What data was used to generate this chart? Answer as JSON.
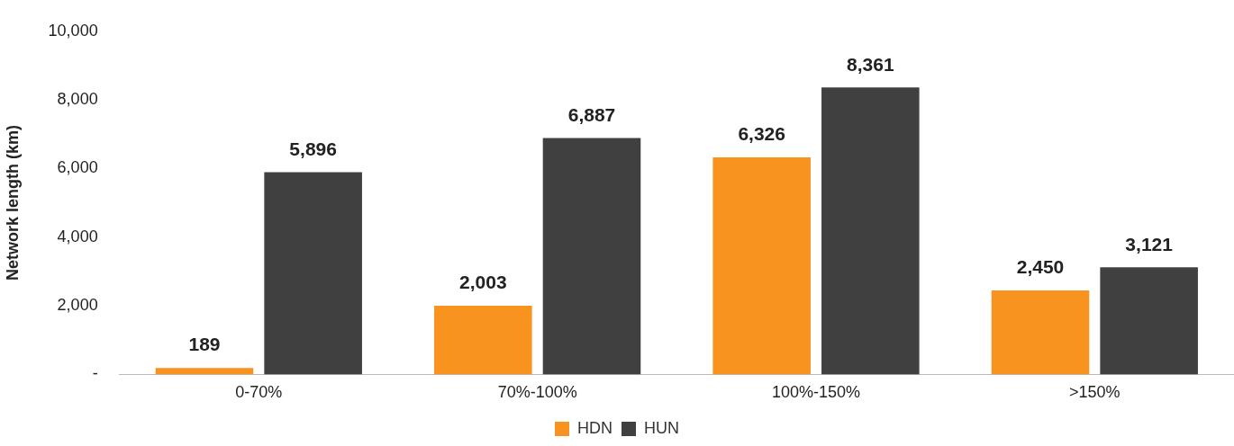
{
  "chart_data": {
    "type": "bar",
    "ylabel": "Network length (km)",
    "categories": [
      "0-70%",
      "70%-100%",
      "100%-150%",
      ">150%"
    ],
    "series": [
      {
        "name": "HDN",
        "color": "#f7931e",
        "values": [
          189,
          2003,
          6326,
          2450
        ],
        "value_labels": [
          "189",
          "2,003",
          "6,326",
          "2,450"
        ]
      },
      {
        "name": "HUN",
        "color": "#404040",
        "values": [
          5896,
          6887,
          8361,
          3121
        ],
        "value_labels": [
          "5,896",
          "6,887",
          "8,361",
          "3,121"
        ]
      }
    ],
    "ylim": [
      0,
      10000
    ],
    "yticks": [
      {
        "value": 0,
        "label": "-"
      },
      {
        "value": 2000,
        "label": "2,000"
      },
      {
        "value": 4000,
        "label": "4,000"
      },
      {
        "value": 6000,
        "label": "6,000"
      },
      {
        "value": 8000,
        "label": "8,000"
      },
      {
        "value": 10000,
        "label": "10,000"
      }
    ],
    "grid": false,
    "legend": "bottom"
  }
}
